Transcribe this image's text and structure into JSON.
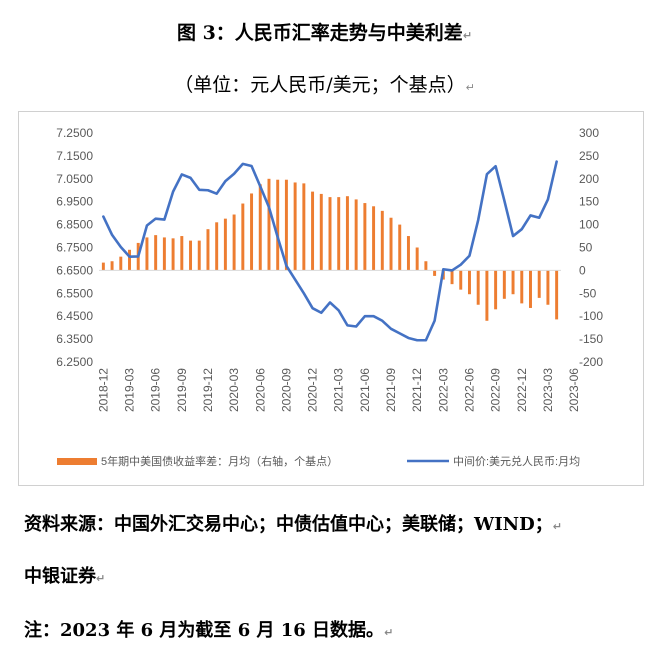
{
  "title": "图 3：人民币汇率走势与中美利差",
  "subtitle": "（单位：元人民币/美元；个基点）",
  "para_mark": "↵",
  "source_line1": "资料来源：中国外汇交易中心；中债估值中心；美联储；WIND；",
  "source_line2": "中银证券",
  "note": "注：2023 年 6 月为截至 6 月 16 日数据。",
  "colors": {
    "bar": "#ED7D31",
    "line": "#4472C4",
    "axis_text": "#595959",
    "grid": "#d9d9d9"
  },
  "chart_data": {
    "type": "bar+line",
    "x_labels": [
      "2018-12",
      "2019-03",
      "2019-06",
      "2019-09",
      "2019-12",
      "2020-03",
      "2020-06",
      "2020-09",
      "2020-12",
      "2021-03",
      "2021-06",
      "2021-09",
      "2021-12",
      "2022-03",
      "2022-06",
      "2022-09",
      "2022-12",
      "2023-03",
      "2023-06"
    ],
    "y_left": {
      "min": 6.25,
      "max": 7.25,
      "ticks": [
        "6.2500",
        "6.3500",
        "6.4500",
        "6.5500",
        "6.6500",
        "6.7500",
        "6.8500",
        "6.9500",
        "7.0500",
        "7.1500",
        "7.2500"
      ]
    },
    "y_right": {
      "min": -200,
      "max": 300,
      "ticks": [
        "-200",
        "-150",
        "-100",
        "-50",
        "0",
        "50",
        "100",
        "150",
        "200",
        "250",
        "300"
      ]
    },
    "series": [
      {
        "name": "5年期中美国债收益率差：月均（右轴，个基点）",
        "type": "bar",
        "axis": "right",
        "values": [
          17,
          20,
          30,
          45,
          60,
          72,
          77,
          72,
          70,
          75,
          65,
          65,
          90,
          105,
          113,
          122,
          146,
          168,
          188,
          200,
          198,
          198,
          192,
          190,
          172,
          167,
          160,
          160,
          162,
          155,
          147,
          140,
          130,
          115,
          100,
          75,
          50,
          20,
          -12,
          -20,
          -30,
          -42,
          -52,
          -75,
          -110,
          -85,
          -62,
          -52,
          -72,
          -82,
          -60,
          -75,
          -107
        ]
      },
      {
        "name": "中间价:美元兑人民币:月均",
        "type": "line",
        "axis": "left",
        "values": [
          6.885,
          6.805,
          6.752,
          6.71,
          6.711,
          6.846,
          6.876,
          6.872,
          6.994,
          7.069,
          7.054,
          7.002,
          7.0,
          6.985,
          7.04,
          7.072,
          7.115,
          7.106,
          7.017,
          6.926,
          6.795,
          6.67,
          6.61,
          6.55,
          6.485,
          6.465,
          6.51,
          6.475,
          6.41,
          6.405,
          6.45,
          6.45,
          6.43,
          6.395,
          6.375,
          6.355,
          6.345,
          6.345,
          6.43,
          6.655,
          6.65,
          6.675,
          6.714,
          6.87,
          7.07,
          7.105,
          6.955,
          6.8,
          6.83,
          6.89,
          6.88,
          6.96,
          7.125
        ]
      }
    ]
  }
}
